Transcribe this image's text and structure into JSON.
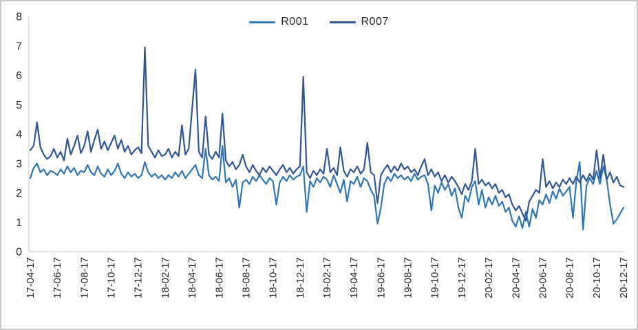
{
  "chart_data": {
    "type": "line",
    "title": "",
    "xlabel": "",
    "ylabel": "",
    "ylim": [
      0,
      8
    ],
    "yticks": [
      0,
      1,
      2,
      3,
      4,
      5,
      6,
      7,
      8
    ],
    "grid": false,
    "legend_position": "top-center",
    "x_tick_labels": [
      "17-04-17",
      "17-06-17",
      "17-08-17",
      "17-10-17",
      "17-12-17",
      "18-02-17",
      "18-04-17",
      "18-06-17",
      "18-08-17",
      "18-10-17",
      "18-12-17",
      "19-02-17",
      "19-04-17",
      "19-06-17",
      "19-08-17",
      "19-10-17",
      "19-12-17",
      "20-02-17",
      "20-04-17",
      "20-06-17",
      "20-08-17",
      "20-10-17",
      "20-12-17"
    ],
    "series": [
      {
        "name": "R001",
        "color": "#2E75B6",
        "values": [
          2.5,
          2.85,
          3.0,
          2.7,
          2.8,
          2.6,
          2.75,
          2.7,
          2.6,
          2.8,
          2.65,
          2.9,
          2.7,
          2.85,
          2.6,
          2.75,
          2.7,
          2.95,
          2.7,
          2.6,
          2.9,
          2.65,
          2.55,
          2.8,
          2.6,
          2.75,
          3.0,
          2.65,
          2.5,
          2.7,
          2.55,
          2.65,
          2.5,
          2.6,
          3.05,
          2.7,
          2.55,
          2.65,
          2.5,
          2.6,
          2.45,
          2.6,
          2.5,
          2.7,
          2.55,
          2.75,
          2.5,
          2.65,
          2.8,
          2.95,
          2.6,
          2.5,
          3.5,
          2.6,
          2.45,
          2.55,
          2.4,
          3.6,
          2.35,
          2.5,
          2.2,
          2.45,
          1.5,
          2.35,
          2.45,
          2.3,
          2.55,
          2.4,
          2.6,
          2.45,
          2.3,
          2.5,
          2.4,
          1.6,
          2.35,
          2.55,
          2.4,
          2.6,
          2.45,
          2.55,
          2.6,
          2.9,
          1.35,
          2.4,
          2.2,
          2.5,
          2.35,
          2.55,
          2.45,
          2.2,
          2.6,
          2.3,
          2.0,
          2.45,
          1.7,
          2.4,
          2.3,
          2.55,
          2.2,
          2.5,
          2.4,
          2.1,
          1.9,
          0.95,
          1.5,
          2.3,
          2.55,
          2.4,
          2.65,
          2.5,
          2.6,
          2.45,
          2.55,
          2.4,
          2.65,
          2.45,
          2.55,
          2.6,
          2.3,
          1.4,
          2.25,
          2.0,
          2.35,
          2.1,
          2.3,
          1.9,
          2.15,
          1.5,
          1.15,
          1.9,
          1.7,
          2.2,
          2.4,
          1.6,
          2.1,
          1.5,
          1.85,
          1.6,
          1.9,
          1.55,
          1.7,
          1.35,
          1.5,
          1.05,
          0.85,
          1.2,
          0.8,
          1.35,
          0.85,
          1.45,
          1.15,
          1.75,
          1.6,
          1.95,
          1.65,
          2.05,
          1.8,
          2.15,
          1.9,
          2.05,
          2.2,
          1.15,
          2.4,
          3.05,
          0.75,
          2.25,
          2.5,
          2.3,
          2.75,
          2.3,
          2.9,
          2.45,
          1.6,
          0.95,
          1.1,
          1.3,
          1.5
        ]
      },
      {
        "name": "R007",
        "color": "#2F5597",
        "values": [
          3.45,
          3.6,
          4.4,
          3.55,
          3.3,
          3.15,
          3.25,
          3.5,
          3.2,
          3.4,
          3.1,
          3.85,
          3.3,
          3.6,
          3.95,
          3.35,
          3.6,
          4.1,
          3.4,
          3.8,
          4.15,
          3.5,
          3.75,
          3.45,
          3.7,
          3.95,
          3.5,
          3.8,
          3.4,
          3.6,
          3.3,
          3.45,
          3.55,
          3.35,
          6.95,
          3.6,
          3.4,
          3.2,
          3.45,
          3.25,
          3.3,
          3.5,
          3.2,
          3.4,
          3.25,
          4.3,
          3.3,
          3.5,
          4.85,
          6.2,
          3.4,
          3.2,
          4.6,
          3.3,
          3.15,
          3.4,
          3.2,
          4.7,
          3.1,
          2.9,
          3.05,
          2.8,
          2.95,
          3.3,
          2.9,
          2.7,
          2.95,
          2.75,
          2.6,
          2.85,
          2.7,
          2.9,
          2.75,
          2.6,
          2.8,
          2.95,
          2.7,
          2.85,
          2.65,
          2.8,
          2.9,
          5.95,
          2.7,
          2.5,
          2.75,
          2.6,
          2.8,
          2.65,
          3.5,
          2.7,
          2.85,
          2.6,
          3.55,
          2.75,
          2.55,
          2.8,
          2.7,
          2.9,
          2.65,
          2.8,
          3.7,
          2.7,
          2.6,
          1.65,
          2.6,
          2.8,
          2.95,
          2.7,
          2.9,
          2.75,
          3.0,
          2.8,
          2.9,
          2.7,
          2.8,
          2.6,
          2.9,
          3.15,
          2.6,
          2.8,
          2.55,
          2.7,
          2.4,
          2.6,
          2.35,
          2.55,
          2.4,
          2.2,
          1.95,
          2.3,
          2.1,
          2.4,
          3.5,
          2.3,
          2.45,
          2.25,
          2.35,
          2.15,
          2.3,
          2.0,
          2.1,
          1.85,
          1.95,
          1.6,
          1.4,
          1.55,
          1.3,
          1.05,
          1.7,
          1.9,
          2.1,
          2.0,
          3.15,
          2.2,
          2.4,
          2.15,
          2.35,
          2.2,
          2.45,
          2.3,
          2.5,
          2.3,
          2.55,
          2.35,
          2.6,
          2.4,
          2.65,
          2.45,
          3.45,
          2.5,
          3.3,
          2.45,
          2.7,
          2.35,
          2.55,
          2.25,
          2.2
        ]
      }
    ]
  },
  "style": {
    "axis_line_color": "#C9C9C9",
    "tick_label_color": "#262626",
    "background": "#FFFFFF",
    "border_color": "#C8C8C8"
  }
}
